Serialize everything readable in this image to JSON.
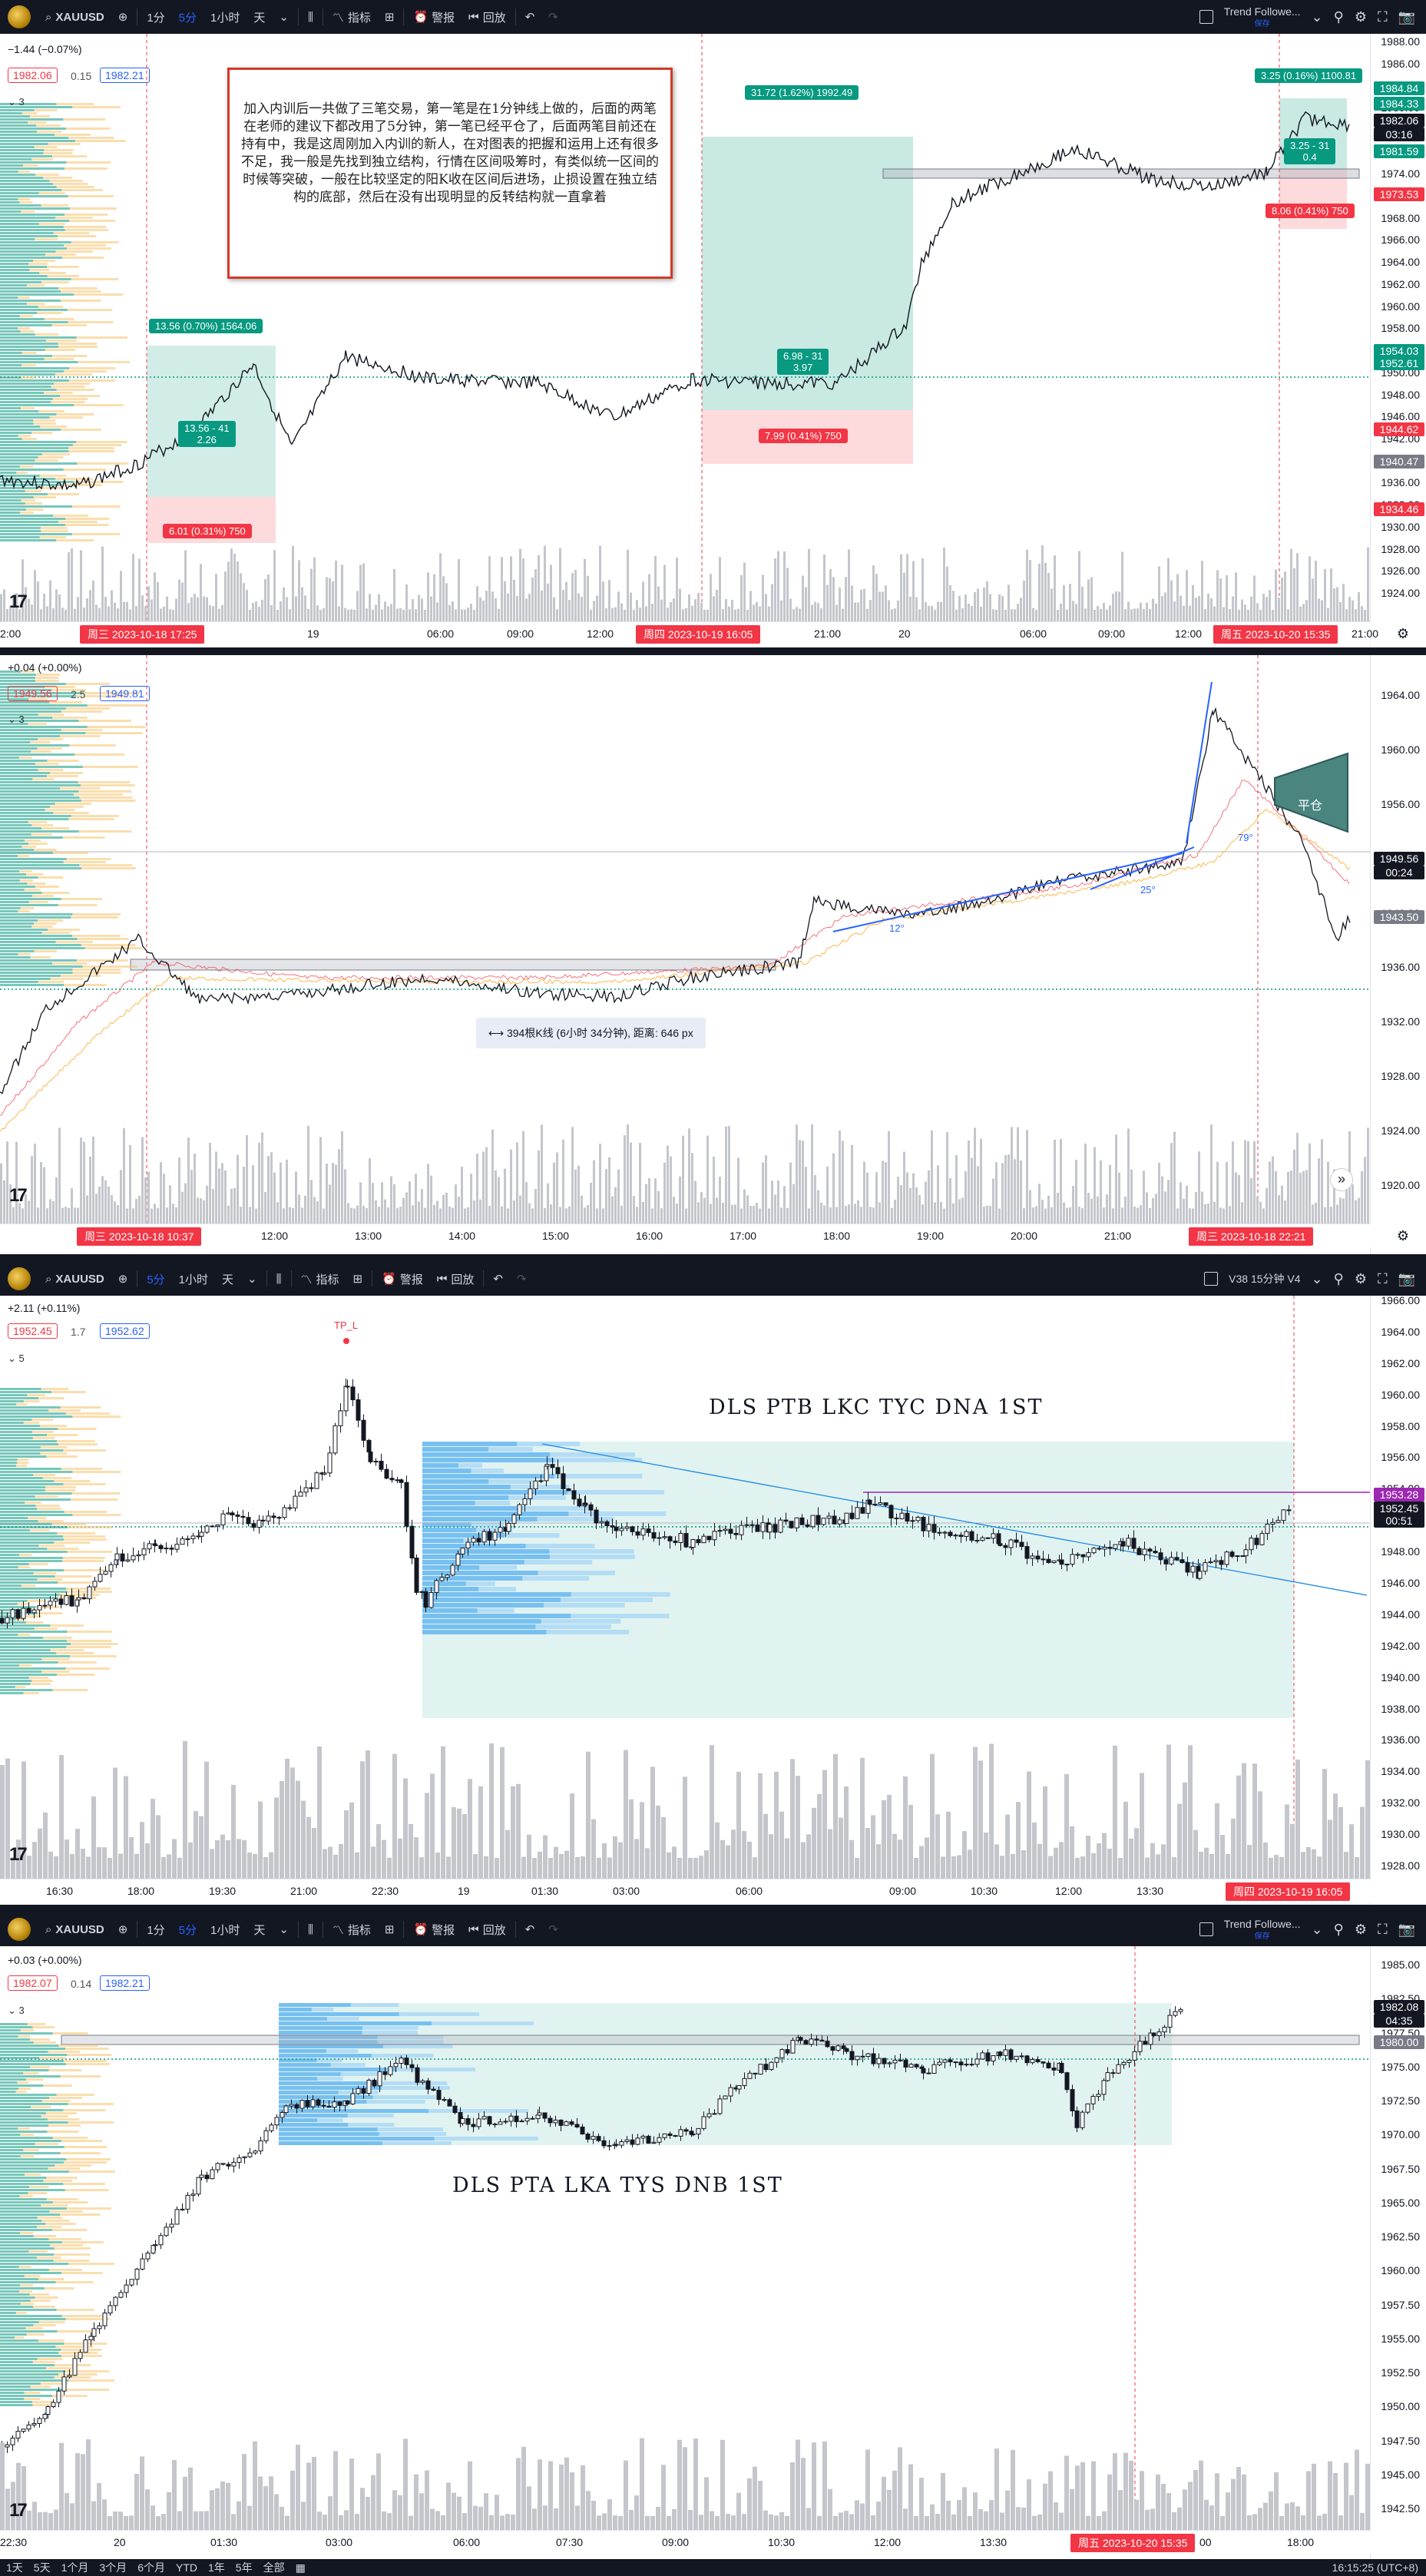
{
  "symbol": "XAUUSD",
  "panels": [
    {
      "id": "p1",
      "toolbar": {
        "intervals": [
          "1分",
          "5分",
          "1小时",
          "天"
        ],
        "active": "5分",
        "indicators": "指标",
        "alerts": "警报",
        "replay": "回放",
        "indicator_name": "Trend Followe...",
        "indicator_status": "保存"
      },
      "change": "−1.44 (−0.07%)",
      "bid": "1982.06",
      "spread": "0.15",
      "ask": "1982.21",
      "vp_count": "3",
      "price_ticks": [
        "1988.00",
        "1986.00",
        "1984.00",
        "1980.00",
        "1978.00",
        "1976.00",
        "1974.00",
        "1970.00",
        "1968.00",
        "1966.00",
        "1964.00",
        "1962.00",
        "1960.00",
        "1958.00",
        "1956.00",
        "1950.00",
        "1948.00",
        "1946.00",
        "1942.00",
        "1938.00",
        "1936.00",
        "1932.00",
        "1930.00",
        "1928.00",
        "1926.00",
        "1924.00"
      ],
      "price_labels": [
        {
          "text": "1984.84",
          "color": "#089981"
        },
        {
          "text": "1984.33",
          "color": "#089981"
        },
        {
          "text": "1982.06",
          "color": "#131722"
        },
        {
          "text": "03:16",
          "color": "#131722"
        },
        {
          "text": "1981.59",
          "color": "#089981"
        },
        {
          "text": "1973.53",
          "color": "#f23645"
        },
        {
          "text": "1954.03",
          "color": "#089981"
        },
        {
          "text": "1952.61",
          "color": "#089981"
        },
        {
          "text": "1944.62",
          "color": "#f23645"
        },
        {
          "text": "1940.47",
          "color": "#787b86"
        },
        {
          "text": "1934.46",
          "color": "#f23645"
        }
      ],
      "time_ticks": [
        "2:00",
        "19",
        "06:00",
        "09:00",
        "12:00",
        "21:00",
        "20",
        "06:00",
        "09:00",
        "12:00",
        "21:00"
      ],
      "time_labels": [
        "周三 2023-10-18  17:25",
        "周四 2023-10-19  16:05",
        "周五 2023-10-20  15:35"
      ],
      "note": "加入内训后一共做了三笔交易，第一笔是在1分钟线上做的，后面的两笔在老师的建议下都改用了5分钟，第一笔已经平仓了，后面两笔目前还在持有中，我是这周刚加入内训的新人，在对图表的把握和运用上还有很多不足，我一般是先找到独立结构，行情在区间吸筹时，有类似统一区间的时候等突破，一般在比较坚定的阳K收在区间后进场，止损设置在独立结构的底部，然后在没有出现明显的反转结构就一直拿着",
      "trades": [
        {
          "tp": "13.56 (0.70%) 1564.06",
          "mid": "13.56 - 41",
          "mid2": "2.26",
          "sl": "6.01 (0.31%) 750"
        },
        {
          "tp": "31.72 (1.62%) 1992.49",
          "mid": "6.98 - 31",
          "mid2": "3.97",
          "sl": "7.99 (0.41%) 750"
        },
        {
          "tp": "3.25 (0.16%) 1100.81",
          "mid": "3.25 - 31",
          "mid2": "0.4",
          "sl": "8.06 (0.41%) 750"
        }
      ]
    },
    {
      "id": "p2",
      "change": "+0.04 (+0.00%)",
      "bid": "1949.56",
      "spread": "2.5",
      "ask": "1949.81",
      "vp_count": "3",
      "price_ticks": [
        "1964.00",
        "1960.00",
        "1956.00",
        "1952.00",
        "1940.00",
        "1936.00",
        "1932.00",
        "1928.00",
        "1924.00",
        "1920.00"
      ],
      "price_labels": [
        {
          "text": "1949.56",
          "color": "#131722"
        },
        {
          "text": "00:24",
          "color": "#131722"
        },
        {
          "text": "1943.50",
          "color": "#787b86"
        }
      ],
      "time_ticks": [
        "12:00",
        "13:00",
        "14:00",
        "15:00",
        "16:00",
        "17:00",
        "18:00",
        "19:00",
        "20:00",
        "21:00"
      ],
      "time_labels": [
        "周三 2023-10-18  10:37",
        "周三 2023-10-18  22:21"
      ],
      "close_label": "平仓",
      "angles": [
        "12°",
        "25°",
        "79°"
      ],
      "measure": "394根K线 (6小时 34分钟), 距离: 646 px"
    },
    {
      "id": "p3",
      "toolbar": {
        "intervals": [
          "5分",
          "1小时",
          "天"
        ],
        "active": "5分",
        "indicators": "指标",
        "alerts": "警报",
        "replay": "回放",
        "indicator_name": "V38 15分钟 V4"
      },
      "change": "+2.11 (+0.11%)",
      "bid": "1952.45",
      "spread": "1.7",
      "ask": "1952.62",
      "vp_count": "5",
      "tp_label": "TP_L",
      "big_label": "DLS  PTB  LKC  TYC  DNA  1ST",
      "price_ticks": [
        "1966.00",
        "1964.00",
        "1962.00",
        "1960.00",
        "1958.00",
        "1956.00",
        "1954.00",
        "1950.00",
        "1948.00",
        "1946.00",
        "1944.00",
        "1942.00",
        "1940.00",
        "1938.00",
        "1936.00",
        "1934.00",
        "1932.00",
        "1930.00",
        "1928.00"
      ],
      "price_labels": [
        {
          "text": "1953.28",
          "color": "#9c27b0"
        },
        {
          "text": "1952.45",
          "color": "#131722"
        },
        {
          "text": "00:51",
          "color": "#131722"
        }
      ],
      "time_ticks": [
        "16:30",
        "18:00",
        "19:30",
        "21:00",
        "22:30",
        "19",
        "01:30",
        "03:00",
        "06:00",
        "09:00",
        "10:30",
        "12:00",
        "13:30"
      ],
      "time_labels": [
        "周四 2023-10-19  16:05"
      ]
    },
    {
      "id": "p4",
      "toolbar": {
        "intervals": [
          "1分",
          "5分",
          "1小时",
          "天"
        ],
        "active": "5分",
        "indicators": "指标",
        "alerts": "警报",
        "replay": "回放",
        "indicator_name": "Trend Followe...",
        "indicator_status": "保存"
      },
      "change": "+0.03 (+0.00%)",
      "bid": "1982.07",
      "spread": "0.14",
      "ask": "1982.21",
      "vp_count": "3",
      "big_label": "DLS  PTA  LKA  TYS  DNB  1ST",
      "price_ticks": [
        "1985.00",
        "1982.50",
        "1977.50",
        "1975.00",
        "1972.50",
        "1970.00",
        "1967.50",
        "1965.00",
        "1962.50",
        "1960.00",
        "1957.50",
        "1955.00",
        "1952.50",
        "1950.00",
        "1947.50",
        "1945.00",
        "1942.50"
      ],
      "price_labels": [
        {
          "text": "1982.08",
          "color": "#131722"
        },
        {
          "text": "04:35",
          "color": "#131722"
        },
        {
          "text": "1980.00",
          "color": "#787b86"
        }
      ],
      "time_ticks": [
        "22:30",
        "20",
        "01:30",
        "03:00",
        "06:00",
        "07:30",
        "09:00",
        "10:30",
        "12:00",
        "13:30",
        "00",
        "18:00"
      ],
      "time_labels": [
        "周五 2023-10-20  15:35"
      ]
    }
  ],
  "bottom_bar": {
    "ranges": [
      "1天",
      "5天",
      "1个月",
      "3个月",
      "6个月",
      "YTD",
      "1年",
      "5年",
      "全部"
    ],
    "clock": "16:15:25 (UTC+8)"
  },
  "colors": {
    "up": "#089981",
    "down": "#f23645",
    "accent": "#2962ff",
    "toolbar": "#131722"
  }
}
